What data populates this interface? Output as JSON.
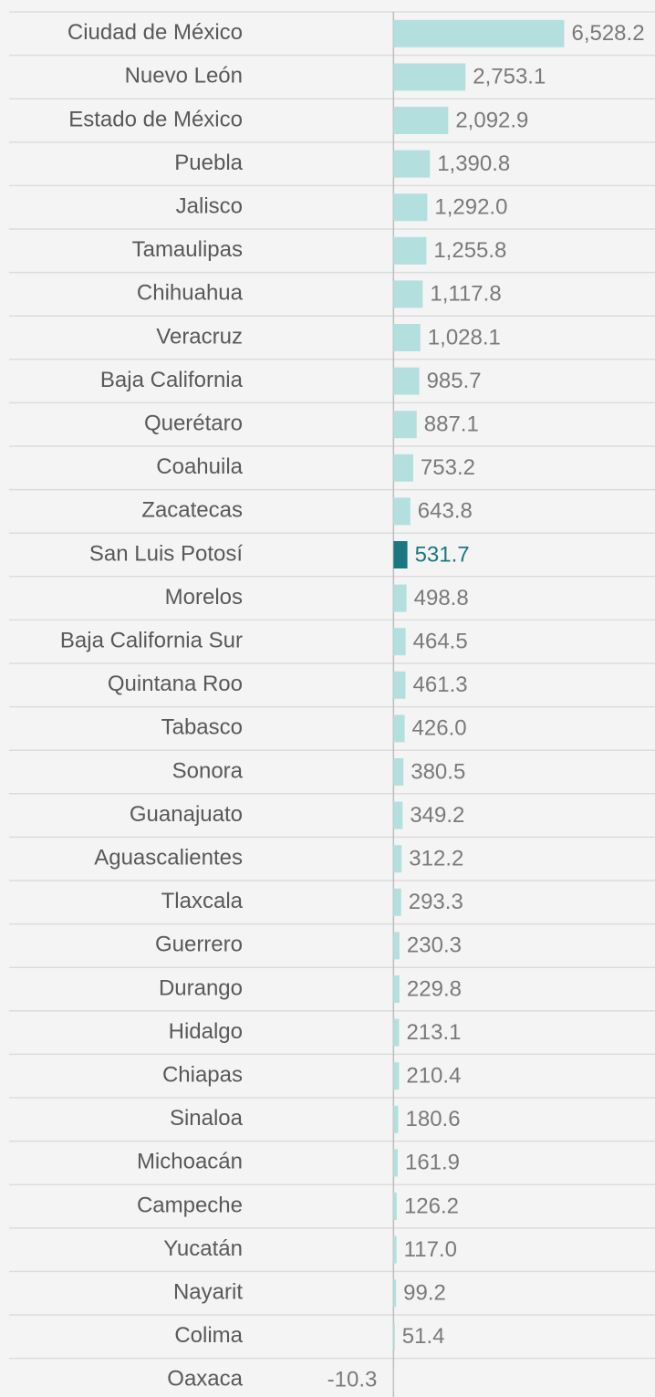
{
  "chart_data": {
    "type": "bar",
    "orientation": "horizontal",
    "categories": [
      "Ciudad de México",
      "Nuevo León",
      "Estado de México",
      "Puebla",
      "Jalisco",
      "Tamaulipas",
      "Chihuahua",
      "Veracruz",
      "Baja California",
      "Querétaro",
      "Coahuila",
      "Zacatecas",
      "San Luis Potosí",
      "Morelos",
      "Baja California Sur",
      "Quintana Roo",
      "Tabasco",
      "Sonora",
      "Guanajuato",
      "Aguascalientes",
      "Tlaxcala",
      "Guerrero",
      "Durango",
      "Hidalgo",
      "Chiapas",
      "Sinaloa",
      "Michoacán",
      "Campeche",
      "Yucatán",
      "Nayarit",
      "Colima",
      "Oaxaca"
    ],
    "values": [
      6528.2,
      2753.1,
      2092.9,
      1390.8,
      1292.0,
      1255.8,
      1117.8,
      1028.1,
      985.7,
      887.1,
      753.2,
      643.8,
      531.7,
      498.8,
      464.5,
      461.3,
      426.0,
      380.5,
      349.2,
      312.2,
      293.3,
      230.3,
      229.8,
      213.1,
      210.4,
      180.6,
      161.9,
      126.2,
      117.0,
      99.2,
      51.4,
      -10.3
    ],
    "value_labels": [
      "6,528.2",
      "2,753.1",
      "2,092.9",
      "1,390.8",
      "1,292.0",
      "1,255.8",
      "1,117.8",
      "1,028.1",
      "985.7",
      "887.1",
      "753.2",
      "643.8",
      "531.7",
      "498.8",
      "464.5",
      "461.3",
      "426.0",
      "380.5",
      "349.2",
      "312.2",
      "293.3",
      "230.3",
      "229.8",
      "213.1",
      "210.4",
      "180.6",
      "161.9",
      "126.2",
      "117.0",
      "99.2",
      "51.4",
      "-10.3"
    ],
    "color": "#b3dfdf",
    "highlight_category": "San Luis Potosí",
    "highlight_color": "#1b7880",
    "xlim": [
      -5000,
      10000
    ]
  }
}
